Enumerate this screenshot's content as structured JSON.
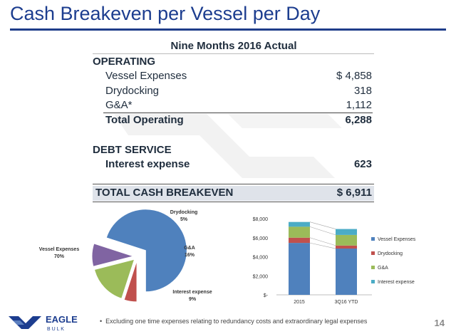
{
  "title": "Cash Breakeven per Vessel per Day",
  "table": {
    "header": "Nine Months 2016 Actual",
    "operating_label": "OPERATING",
    "rows": [
      {
        "label": "Vessel Expenses",
        "value": "$ 4,858"
      },
      {
        "label": "Drydocking",
        "value": "318"
      },
      {
        "label": "G&A*",
        "value": "1,112"
      }
    ],
    "total_operating": {
      "label": "Total Operating",
      "value": "6,288"
    },
    "debt_label": "DEBT SERVICE",
    "interest": {
      "label": "Interest expense",
      "value": "623"
    },
    "total_breakeven": {
      "label": "TOTAL CASH BREAKEVEN",
      "value": "$ 6,911"
    }
  },
  "colors": {
    "vessel": "#4f81bd",
    "drydocking": "#c0504d",
    "ga": "#9bbb59",
    "interest": "#8064a2",
    "interest_bar": "#4bacc6",
    "title": "#1c3d8f"
  },
  "chart_data": [
    {
      "type": "pie",
      "labels": [
        "Vessel Expenses",
        "Drydocking",
        "G&A",
        "Interest expense"
      ],
      "percent_labels": [
        "70%",
        "5%",
        "16%",
        "9%"
      ],
      "values": [
        70,
        5,
        16,
        9
      ]
    },
    {
      "type": "bar",
      "stacked": true,
      "categories": [
        "2015",
        "3Q16 YTD"
      ],
      "series": [
        {
          "name": "Vessel Expenses",
          "values": [
            5450,
            4858
          ]
        },
        {
          "name": "Drydocking",
          "values": [
            550,
            318
          ]
        },
        {
          "name": "G&A",
          "values": [
            1150,
            1112
          ]
        },
        {
          "name": "Interest expense",
          "values": [
            500,
            623
          ]
        }
      ],
      "ylim": [
        0,
        8000
      ],
      "yticks": [
        0,
        2000,
        4000,
        6000,
        8000
      ],
      "ytick_labels": [
        "$-",
        "$2,000",
        "$4,000",
        "$6,000",
        "$8,000"
      ],
      "legend": "right",
      "grid": false
    }
  ],
  "footer": {
    "logo_top": "EAGLE",
    "logo_bottom": "B U L K",
    "footnote": "Excluding one time expenses relating to redundancy costs and extraordinary legal expenses",
    "page_number": "14"
  }
}
